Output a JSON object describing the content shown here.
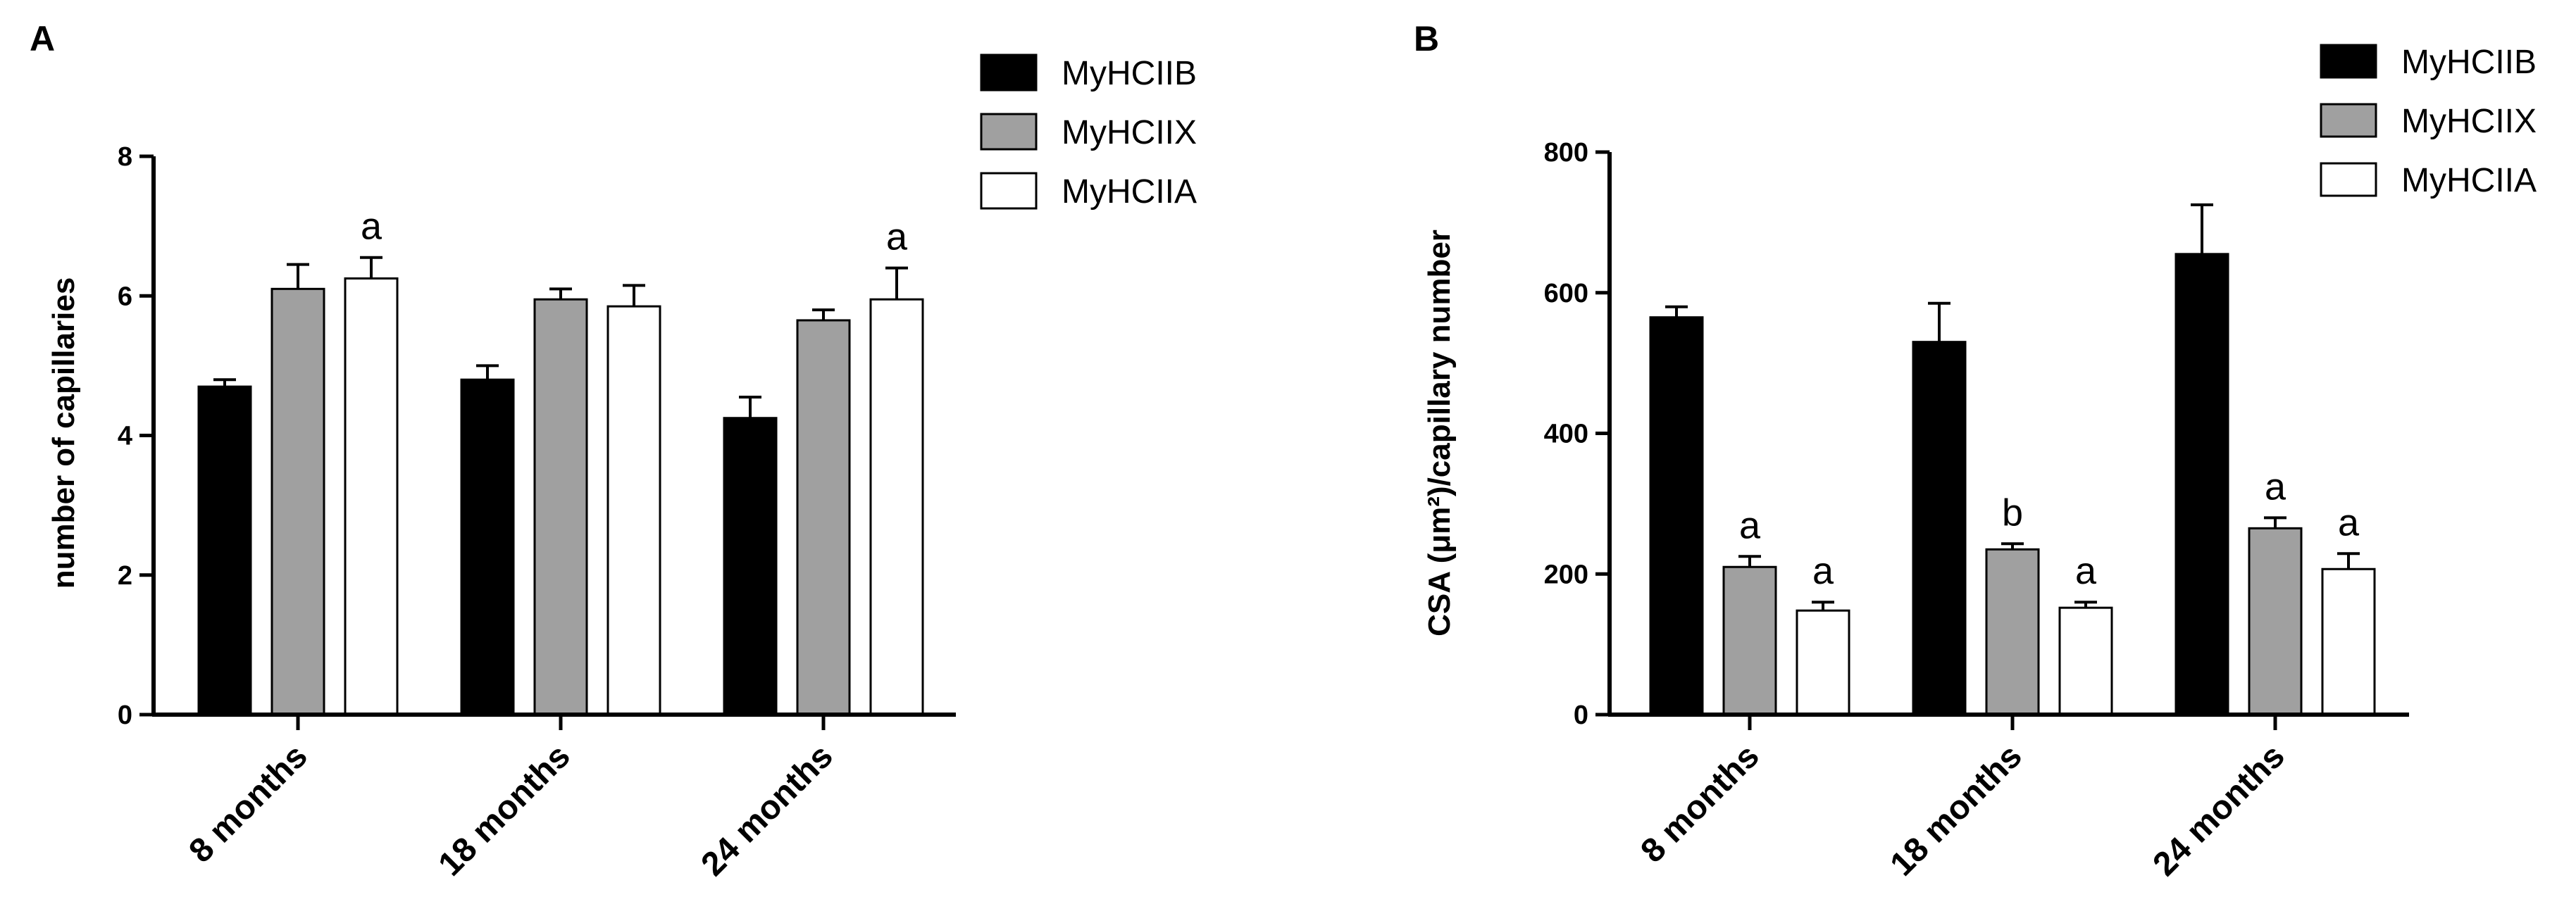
{
  "colors": {
    "MyHCIIB": "#000000",
    "MyHCIIX": "#a0a0a0",
    "MyHCIIA": "#ffffff",
    "axis": "#000000"
  },
  "chart_data": [
    {
      "panel": "A",
      "type": "bar",
      "title": "",
      "xlabel": "",
      "ylabel": "number of capillaries",
      "ylim": [
        0,
        8
      ],
      "yticks": [
        0,
        2,
        4,
        6,
        8
      ],
      "categories": [
        "8 months",
        "18 months",
        "24 months"
      ],
      "legend_position": "top-right",
      "series": [
        {
          "name": "MyHCIIB",
          "values": [
            4.7,
            4.8,
            4.25
          ],
          "errors": [
            0.1,
            0.2,
            0.3
          ],
          "labels": [
            "",
            "",
            ""
          ]
        },
        {
          "name": "MyHCIIX",
          "values": [
            6.1,
            5.95,
            5.65
          ],
          "errors": [
            0.35,
            0.15,
            0.15
          ],
          "labels": [
            "",
            "",
            ""
          ]
        },
        {
          "name": "MyHCIIA",
          "values": [
            6.25,
            5.85,
            5.95
          ],
          "errors": [
            0.3,
            0.3,
            0.45
          ],
          "labels": [
            "a",
            "",
            "a"
          ]
        }
      ]
    },
    {
      "panel": "B",
      "type": "bar",
      "title": "",
      "xlabel": "",
      "ylabel": "CSA (μm²)/capillary number",
      "ylim": [
        0,
        800
      ],
      "yticks": [
        0,
        200,
        400,
        600,
        800
      ],
      "categories": [
        "8 months",
        "18 months",
        "24 months"
      ],
      "legend_position": "top-right",
      "series": [
        {
          "name": "MyHCIIB",
          "values": [
            565,
            530,
            655
          ],
          "errors": [
            15,
            55,
            70
          ],
          "labels": [
            "",
            "",
            ""
          ]
        },
        {
          "name": "MyHCIIX",
          "values": [
            210,
            235,
            265
          ],
          "errors": [
            15,
            8,
            15
          ],
          "labels": [
            "a",
            "b",
            "a"
          ]
        },
        {
          "name": "MyHCIIA",
          "values": [
            148,
            152,
            207
          ],
          "errors": [
            12,
            8,
            22
          ],
          "labels": [
            "a",
            "a",
            "a"
          ]
        }
      ]
    }
  ]
}
